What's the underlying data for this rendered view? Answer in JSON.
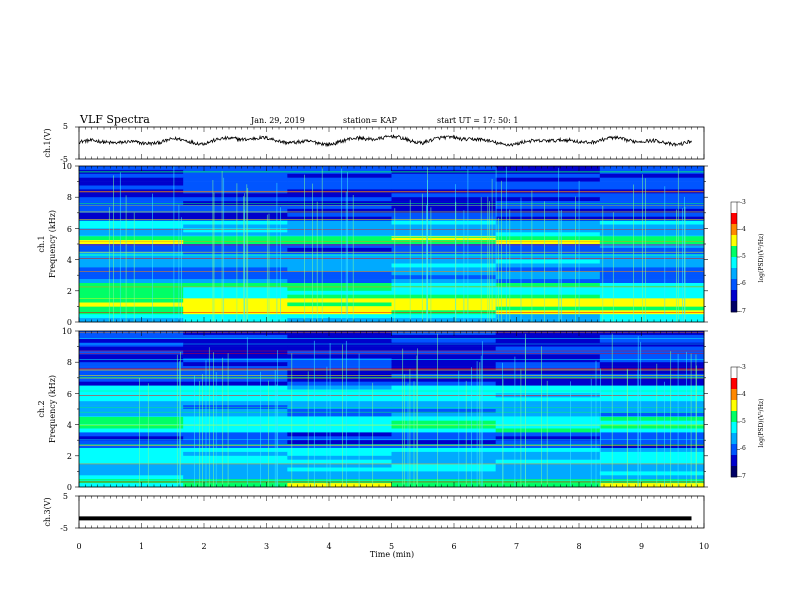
{
  "header": {
    "title": "VLF Spectra",
    "date": "Jan. 29, 2019",
    "station": "station= KAP",
    "start": "start  UT  =   17: 50: 1"
  },
  "colors": {
    "colormap": [
      "#000066",
      "#0000cc",
      "#0055ff",
      "#00aaff",
      "#00ffff",
      "#00ff66",
      "#ffff00",
      "#ff8800",
      "#ff0000",
      "#ffffff"
    ],
    "trace": "#000000"
  },
  "chart_data": [
    {
      "type": "line",
      "ylabel": "ch.1(V)",
      "ylim": [
        -5,
        5
      ],
      "yticks": [
        "5",
        "-5"
      ],
      "xlim": [
        0,
        10
      ],
      "description_series": "oscillating voltage trace around 0 V with ~0.2 V noise and slow ~40 s waves",
      "x": [
        0,
        0.5,
        1,
        1.5,
        2,
        2.5,
        3,
        3.5,
        4,
        4.5,
        5,
        5.5,
        6,
        6.5,
        7,
        7.5,
        8,
        8.5,
        9,
        9.5,
        9.8
      ],
      "values": [
        0.3,
        0.5,
        -0.2,
        1.0,
        0.1,
        1.6,
        1.2,
        0.2,
        -0.1,
        1.4,
        1.8,
        0.3,
        2.0,
        0.5,
        -0.4,
        1.2,
        0.2,
        1.3,
        0.8,
        -0.3,
        0.6
      ]
    },
    {
      "type": "heatmap",
      "ylabel": "ch.1",
      "ylabel2": "Frequency (kHz)",
      "ylim": [
        0,
        10
      ],
      "yticks": [
        "0",
        "2",
        "4",
        "6",
        "8",
        "10"
      ],
      "xlim": [
        0,
        10
      ],
      "colorbar": {
        "label": "log(PSD)(V²/Hz)",
        "range": [
          -7,
          -3
        ],
        "ticks": [
          "-3",
          "-4",
          "-5",
          "-6",
          "-7"
        ]
      }
    },
    {
      "type": "heatmap",
      "ylabel": "ch.2",
      "ylabel2": "Frequency (kHz)",
      "ylim": [
        0,
        10
      ],
      "yticks": [
        "0",
        "2",
        "4",
        "6",
        "8",
        "10"
      ],
      "xlim": [
        0,
        10
      ],
      "colorbar": {
        "label": "log(PSD)(V²/Hz)",
        "range": [
          -7,
          -3
        ],
        "ticks": [
          "-3",
          "-4",
          "-5",
          "-6",
          "-7"
        ]
      }
    },
    {
      "type": "line",
      "ylabel": "ch.3(V)",
      "ylim": [
        -5,
        5
      ],
      "yticks": [
        "5",
        "-5"
      ],
      "xlim": [
        0,
        9.8
      ],
      "x": [
        0,
        9.8
      ],
      "values": [
        -2.0,
        -2.0
      ]
    }
  ],
  "xaxis": {
    "label": "Time (min)",
    "ticks": [
      "0",
      "1",
      "2",
      "3",
      "4",
      "5",
      "6",
      "7",
      "8",
      "9",
      "10"
    ]
  }
}
